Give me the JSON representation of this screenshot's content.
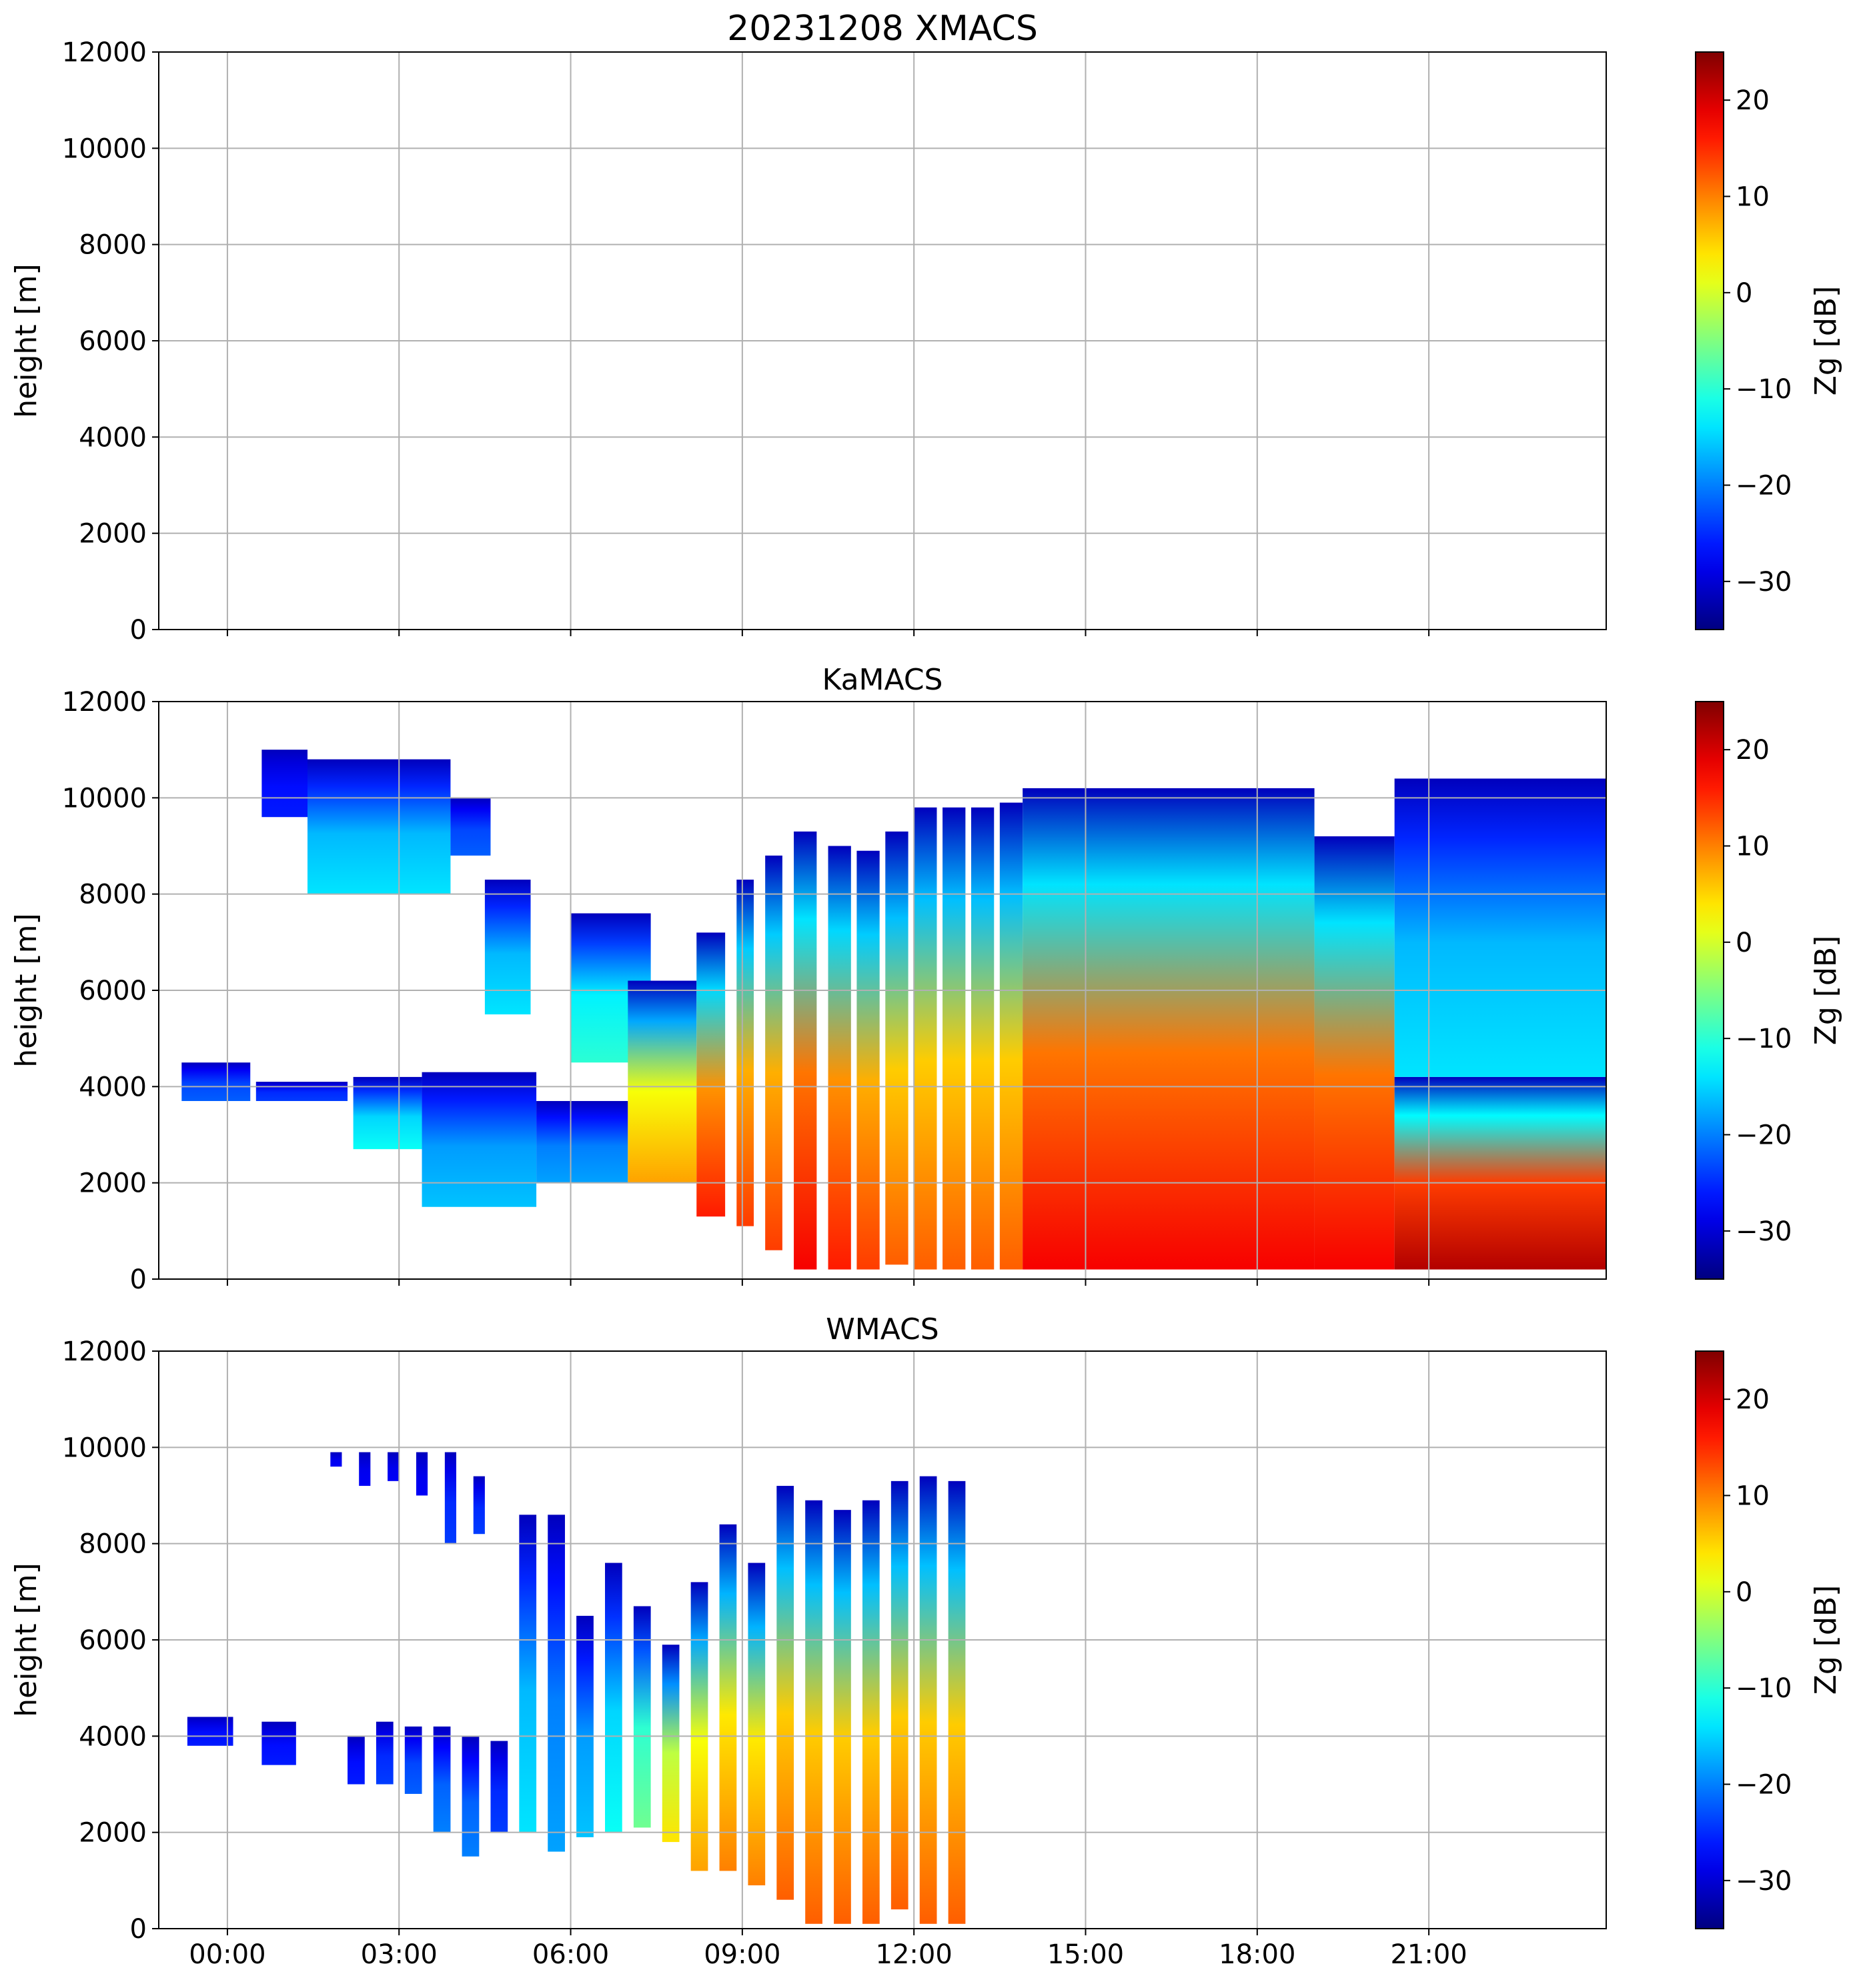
{
  "chart_data": [
    {
      "type": "heatmap",
      "title": "20231208 XMACS",
      "xlabel": "",
      "ylabel": "height [m]",
      "ylim": [
        0,
        12000
      ],
      "y_ticks": [
        "0",
        "2000",
        "4000",
        "6000",
        "8000",
        "10000",
        "12000"
      ],
      "x_ticks": [],
      "xlim_hours": [
        -1.2,
        24.1
      ],
      "colorbar": {
        "label": "Zg [dB]",
        "range": [
          -35,
          25
        ],
        "ticks": [
          "−30",
          "−20",
          "−10",
          "0",
          "10",
          "20"
        ]
      },
      "grid": true,
      "data_present": false,
      "echo_segments": []
    },
    {
      "type": "heatmap",
      "title": "KaMACS",
      "xlabel": "",
      "ylabel": "height [m]",
      "ylim": [
        0,
        12000
      ],
      "y_ticks": [
        "0",
        "2000",
        "4000",
        "6000",
        "8000",
        "10000",
        "12000"
      ],
      "x_ticks": [],
      "xlim_hours": [
        -1.2,
        24.1
      ],
      "colorbar": {
        "label": "Zg [dB]",
        "range": [
          -35,
          25
        ],
        "ticks": [
          "−30",
          "−20",
          "−10",
          "0",
          "10",
          "20"
        ]
      },
      "grid": true,
      "data_present": true,
      "echo_segments": [
        {
          "t0": -0.8,
          "t1": 0.4,
          "bottom": 3700,
          "top": 4500,
          "zmax": -22
        },
        {
          "t0": 0.5,
          "t1": 2.1,
          "bottom": 3700,
          "top": 4100,
          "zmax": -24
        },
        {
          "t0": 0.6,
          "t1": 1.4,
          "bottom": 9600,
          "top": 11000,
          "zmax": -26
        },
        {
          "t0": 1.4,
          "t1": 3.9,
          "bottom": 8000,
          "top": 10800,
          "zmax": -14
        },
        {
          "t0": 3.9,
          "t1": 4.6,
          "bottom": 8800,
          "top": 10000,
          "zmax": -22
        },
        {
          "t0": 2.2,
          "t1": 3.4,
          "bottom": 2700,
          "top": 4200,
          "zmax": -12
        },
        {
          "t0": 3.4,
          "t1": 5.4,
          "bottom": 1500,
          "top": 4300,
          "zmax": -16
        },
        {
          "t0": 4.5,
          "t1": 5.3,
          "bottom": 5500,
          "top": 8300,
          "zmax": -14
        },
        {
          "t0": 5.4,
          "t1": 7.0,
          "bottom": 2000,
          "top": 3700,
          "zmax": -18
        },
        {
          "t0": 6.0,
          "t1": 7.4,
          "bottom": 4500,
          "top": 7600,
          "zmax": -10
        },
        {
          "t0": 7.0,
          "t1": 8.2,
          "bottom": 2000,
          "top": 6200,
          "zmax": 8
        },
        {
          "t0": 8.2,
          "t1": 8.7,
          "bottom": 1300,
          "top": 7200,
          "zmax": 16
        },
        {
          "t0": 8.9,
          "t1": 9.2,
          "bottom": 1100,
          "top": 8300,
          "zmax": 14
        },
        {
          "t0": 9.4,
          "t1": 9.7,
          "bottom": 600,
          "top": 8800,
          "zmax": 14
        },
        {
          "t0": 9.9,
          "t1": 10.3,
          "bottom": 200,
          "top": 9300,
          "zmax": 18
        },
        {
          "t0": 10.5,
          "t1": 10.9,
          "bottom": 200,
          "top": 9000,
          "zmax": 16
        },
        {
          "t0": 11.0,
          "t1": 11.4,
          "bottom": 200,
          "top": 8900,
          "zmax": 14
        },
        {
          "t0": 11.5,
          "t1": 11.9,
          "bottom": 300,
          "top": 9300,
          "zmax": 12
        },
        {
          "t0": 12.0,
          "t1": 12.4,
          "bottom": 200,
          "top": 9800,
          "zmax": 12
        },
        {
          "t0": 12.5,
          "t1": 12.9,
          "bottom": 200,
          "top": 9800,
          "zmax": 12
        },
        {
          "t0": 13.0,
          "t1": 13.4,
          "bottom": 200,
          "top": 9800,
          "zmax": 12
        },
        {
          "t0": 13.5,
          "t1": 13.9,
          "bottom": 200,
          "top": 9900,
          "zmax": 12
        },
        {
          "t0": 13.9,
          "t1": 19.0,
          "bottom": 200,
          "top": 10200,
          "zmax": 18
        },
        {
          "t0": 19.0,
          "t1": 20.4,
          "bottom": 200,
          "top": 9200,
          "zmax": 18
        },
        {
          "t0": 20.4,
          "t1": 24.1,
          "bottom": 200,
          "top": 4200,
          "zmax": 22
        },
        {
          "t0": 20.4,
          "t1": 24.1,
          "bottom": 4200,
          "top": 10400,
          "zmax": -14
        }
      ]
    },
    {
      "type": "heatmap",
      "title": "WMACS",
      "xlabel": "",
      "ylabel": "height [m]",
      "ylim": [
        0,
        12000
      ],
      "y_ticks": [
        "0",
        "2000",
        "4000",
        "6000",
        "8000",
        "10000",
        "12000"
      ],
      "x_ticks": [
        "00:00",
        "03:00",
        "06:00",
        "09:00",
        "12:00",
        "15:00",
        "18:00",
        "21:00"
      ],
      "xlim_hours": [
        -1.2,
        24.1
      ],
      "colorbar": {
        "label": "Zg [dB]",
        "range": [
          -35,
          25
        ],
        "ticks": [
          "−30",
          "−20",
          "−10",
          "0",
          "10",
          "20"
        ]
      },
      "grid": true,
      "data_present": true,
      "echo_segments": [
        {
          "t0": -0.7,
          "t1": 0.1,
          "bottom": 3800,
          "top": 4400,
          "zmax": -26
        },
        {
          "t0": 0.6,
          "t1": 1.2,
          "bottom": 3400,
          "top": 4300,
          "zmax": -26
        },
        {
          "t0": 1.8,
          "t1": 2.0,
          "bottom": 9600,
          "top": 9900,
          "zmax": -28
        },
        {
          "t0": 2.3,
          "t1": 2.5,
          "bottom": 9200,
          "top": 9900,
          "zmax": -28
        },
        {
          "t0": 2.8,
          "t1": 3.0,
          "bottom": 9300,
          "top": 9900,
          "zmax": -28
        },
        {
          "t0": 3.3,
          "t1": 3.5,
          "bottom": 9000,
          "top": 9900,
          "zmax": -28
        },
        {
          "t0": 3.8,
          "t1": 4.0,
          "bottom": 8000,
          "top": 9900,
          "zmax": -24
        },
        {
          "t0": 4.3,
          "t1": 4.5,
          "bottom": 8200,
          "top": 9400,
          "zmax": -24
        },
        {
          "t0": 2.1,
          "t1": 2.4,
          "bottom": 3000,
          "top": 4000,
          "zmax": -26
        },
        {
          "t0": 2.6,
          "t1": 2.9,
          "bottom": 3000,
          "top": 4300,
          "zmax": -24
        },
        {
          "t0": 3.1,
          "t1": 3.4,
          "bottom": 2800,
          "top": 4200,
          "zmax": -22
        },
        {
          "t0": 3.6,
          "t1": 3.9,
          "bottom": 2000,
          "top": 4200,
          "zmax": -20
        },
        {
          "t0": 4.1,
          "t1": 4.4,
          "bottom": 1500,
          "top": 4000,
          "zmax": -20
        },
        {
          "t0": 4.6,
          "t1": 4.9,
          "bottom": 2000,
          "top": 3900,
          "zmax": -24
        },
        {
          "t0": 5.1,
          "t1": 5.4,
          "bottom": 2000,
          "top": 8600,
          "zmax": -14
        },
        {
          "t0": 5.6,
          "t1": 5.9,
          "bottom": 1600,
          "top": 8600,
          "zmax": -18
        },
        {
          "t0": 6.1,
          "t1": 6.4,
          "bottom": 1900,
          "top": 6500,
          "zmax": -16
        },
        {
          "t0": 6.6,
          "t1": 6.9,
          "bottom": 2000,
          "top": 7600,
          "zmax": -12
        },
        {
          "t0": 7.1,
          "t1": 7.4,
          "bottom": 2100,
          "top": 6700,
          "zmax": -6
        },
        {
          "t0": 7.6,
          "t1": 7.9,
          "bottom": 1800,
          "top": 5900,
          "zmax": 4
        },
        {
          "t0": 8.1,
          "t1": 8.4,
          "bottom": 1200,
          "top": 7200,
          "zmax": 8
        },
        {
          "t0": 8.6,
          "t1": 8.9,
          "bottom": 1200,
          "top": 8400,
          "zmax": 10
        },
        {
          "t0": 9.1,
          "t1": 9.4,
          "bottom": 900,
          "top": 7600,
          "zmax": 10
        },
        {
          "t0": 9.6,
          "t1": 9.9,
          "bottom": 600,
          "top": 9200,
          "zmax": 12
        },
        {
          "t0": 10.1,
          "t1": 10.4,
          "bottom": 100,
          "top": 8900,
          "zmax": 12
        },
        {
          "t0": 10.6,
          "t1": 10.9,
          "bottom": 100,
          "top": 8700,
          "zmax": 12
        },
        {
          "t0": 11.1,
          "t1": 11.4,
          "bottom": 100,
          "top": 8900,
          "zmax": 12
        },
        {
          "t0": 11.6,
          "t1": 11.9,
          "bottom": 400,
          "top": 9300,
          "zmax": 12
        },
        {
          "t0": 12.1,
          "t1": 12.4,
          "bottom": 100,
          "top": 9400,
          "zmax": 12
        },
        {
          "t0": 12.6,
          "t1": 12.9,
          "bottom": 100,
          "top": 9300,
          "zmax": 12
        }
      ]
    }
  ]
}
